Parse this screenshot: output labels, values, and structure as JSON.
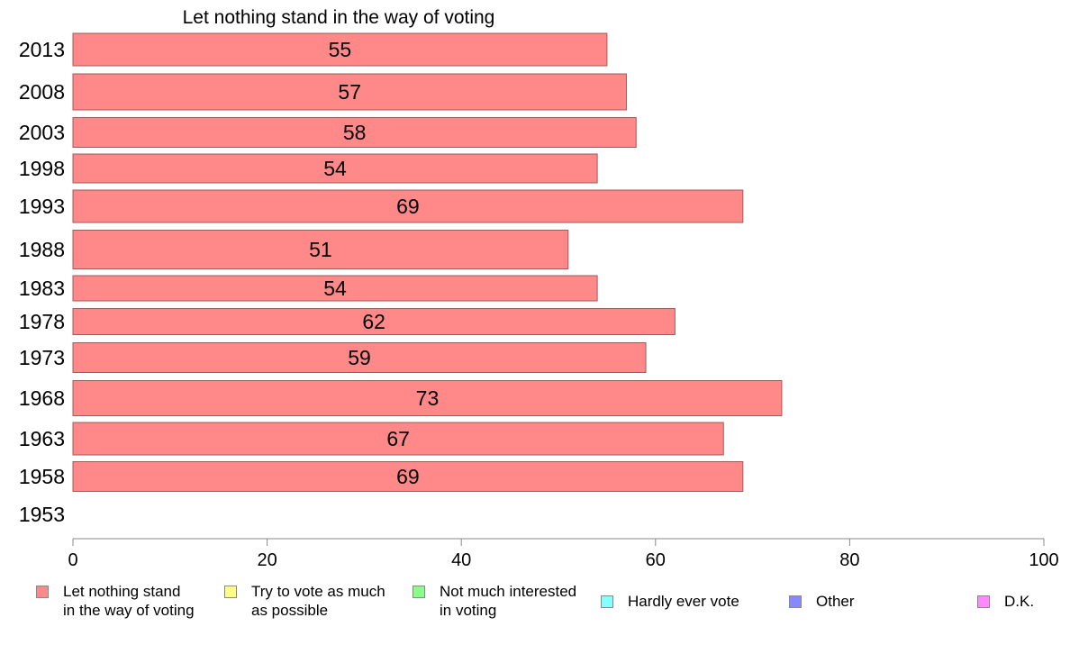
{
  "chart_data": {
    "type": "bar",
    "orientation": "horizontal",
    "title": "Let nothing stand in the way of voting",
    "categories": [
      "2013",
      "2008",
      "2003",
      "1998",
      "1993",
      "1988",
      "1983",
      "1978",
      "1973",
      "1968",
      "1963",
      "1958",
      "1953"
    ],
    "series": [
      {
        "name": "Let nothing stand\nin the way of voting",
        "values": [
          55,
          57,
          58,
          54,
          69,
          51,
          54,
          62,
          59,
          73,
          67,
          69,
          null
        ],
        "color": "#ff8888"
      }
    ],
    "xlim": [
      0,
      100
    ],
    "xticks": [
      "0",
      "20",
      "40",
      "60",
      "80",
      "100"
    ],
    "grid": false,
    "legend_position": "bottom"
  },
  "legend": [
    {
      "label": "Let nothing stand\nin the way of voting",
      "color": "#ff8888"
    },
    {
      "label": "Try to vote as much\nas possible",
      "color": "#ffff88"
    },
    {
      "label": "Not much interested\nin voting",
      "color": "#88ff88"
    },
    {
      "label": "Hardly ever vote",
      "color": "#88ffff"
    },
    {
      "label": "Other",
      "color": "#8888ff"
    },
    {
      "label": "D.K.",
      "color": "#ff88ff"
    }
  ]
}
